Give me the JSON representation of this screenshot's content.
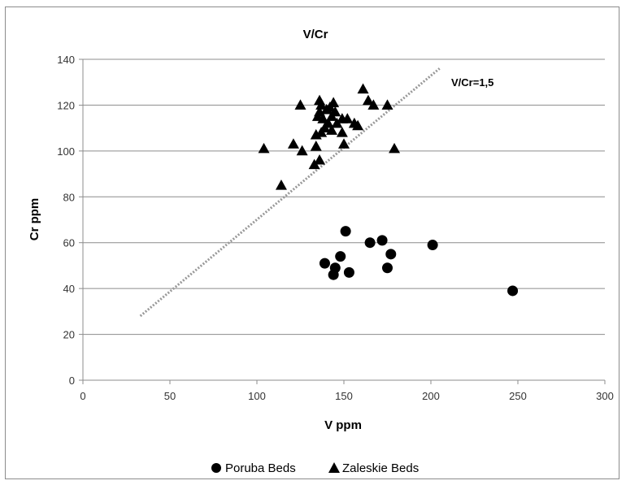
{
  "chart_data": {
    "type": "scatter",
    "title": "V/Cr",
    "xlabel": "V ppm",
    "ylabel": "Cr ppm",
    "xlim": [
      0,
      300
    ],
    "ylim": [
      0,
      140
    ],
    "xticks": [
      "0",
      "50",
      "100",
      "150",
      "200",
      "250",
      "300"
    ],
    "yticks": [
      "0",
      "20",
      "40",
      "60",
      "80",
      "100",
      "120",
      "140"
    ],
    "grid": "horizontal",
    "legend": "bottom",
    "series": [
      {
        "name": "Poruba Beds",
        "marker": "circle",
        "color": "#000000",
        "points": [
          [
            139,
            51
          ],
          [
            144,
            46
          ],
          [
            145,
            49
          ],
          [
            148,
            54
          ],
          [
            151,
            65
          ],
          [
            153,
            47
          ],
          [
            165,
            60
          ],
          [
            172,
            61
          ],
          [
            175,
            49
          ],
          [
            177,
            55
          ],
          [
            201,
            59
          ],
          [
            247,
            39
          ]
        ]
      },
      {
        "name": "Zaleskie Beds",
        "marker": "triangle",
        "color": "#000000",
        "points": [
          [
            104,
            101
          ],
          [
            114,
            85
          ],
          [
            121,
            103
          ],
          [
            125,
            120
          ],
          [
            126,
            100
          ],
          [
            133,
            94
          ],
          [
            134,
            102
          ],
          [
            134,
            107
          ],
          [
            135,
            115
          ],
          [
            136,
            96
          ],
          [
            136,
            122
          ],
          [
            136,
            117
          ],
          [
            137,
            108
          ],
          [
            137,
            120
          ],
          [
            138,
            114
          ],
          [
            139,
            110
          ],
          [
            140,
            118
          ],
          [
            141,
            112
          ],
          [
            142,
            119
          ],
          [
            143,
            115
          ],
          [
            143,
            109
          ],
          [
            144,
            121
          ],
          [
            145,
            117
          ],
          [
            146,
            112
          ],
          [
            149,
            108
          ],
          [
            149,
            114
          ],
          [
            150,
            103
          ],
          [
            152,
            114
          ],
          [
            156,
            112
          ],
          [
            158,
            111
          ],
          [
            161,
            127
          ],
          [
            164,
            122
          ],
          [
            167,
            120
          ],
          [
            175,
            120
          ],
          [
            179,
            101
          ]
        ]
      }
    ],
    "reference_line": {
      "label": "V/Cr=1,5",
      "style": "dotted",
      "color": "#999999",
      "from": [
        33,
        28
      ],
      "to": [
        205,
        136
      ]
    }
  }
}
